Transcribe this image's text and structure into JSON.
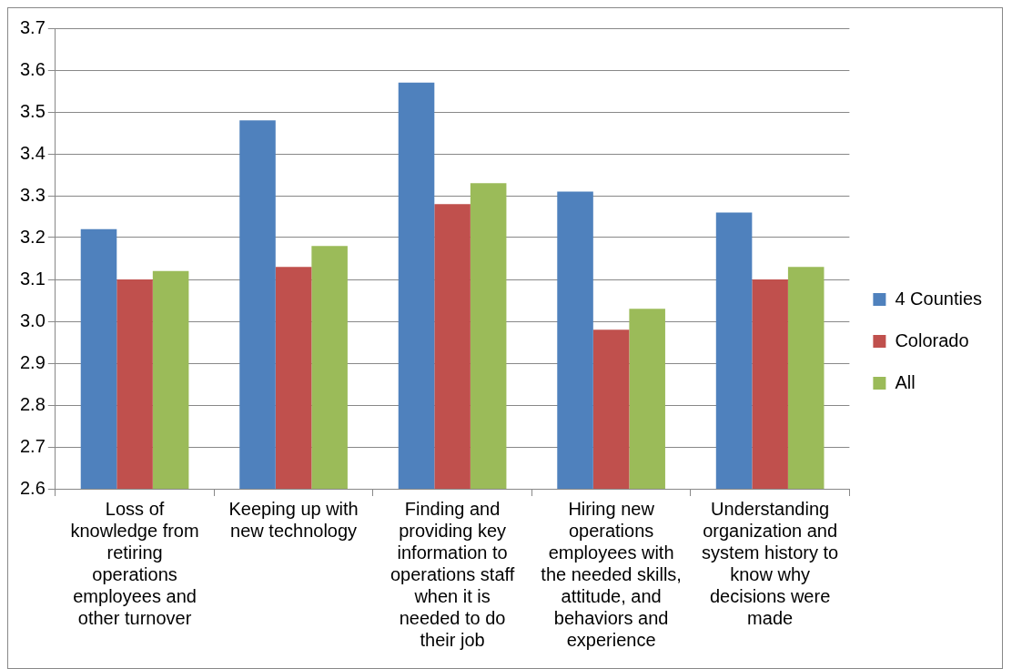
{
  "chart_data": {
    "type": "bar",
    "categories": [
      "Loss of knowledge from retiring operations employees and other turnover",
      "Keeping up with new technology",
      "Finding and providing key information to operations staff when it is needed to do their job",
      "Hiring new operations employees with the needed skills, attitude, and behaviors and experience",
      "Understanding organization and system history to know why decisions were made"
    ],
    "series": [
      {
        "name": "4 Counties",
        "color": "#4f81bd",
        "values": [
          3.22,
          3.48,
          3.57,
          3.31,
          3.26
        ]
      },
      {
        "name": "Colorado",
        "color": "#c0504d",
        "values": [
          3.1,
          3.13,
          3.28,
          2.98,
          3.1
        ]
      },
      {
        "name": "All",
        "color": "#9bbb59",
        "values": [
          3.12,
          3.18,
          3.33,
          3.03,
          3.13
        ]
      }
    ],
    "ylim": [
      2.6,
      3.7
    ],
    "yticks": [
      {
        "value": 2.6,
        "label": "2.6"
      },
      {
        "value": 2.7,
        "label": "2.7"
      },
      {
        "value": 2.8,
        "label": "2.8"
      },
      {
        "value": 2.9,
        "label": "2.9"
      },
      {
        "value": 3.0,
        "label": "3.0"
      },
      {
        "value": 3.1,
        "label": "3.1"
      },
      {
        "value": 3.2,
        "label": "3.2"
      },
      {
        "value": 3.3,
        "label": "3.3"
      },
      {
        "value": 3.4,
        "label": "3.4"
      },
      {
        "value": 3.5,
        "label": "3.5"
      },
      {
        "value": 3.6,
        "label": "3.6"
      },
      {
        "value": 3.7,
        "label": "3.7"
      }
    ],
    "grid": "y",
    "legend": "right"
  }
}
